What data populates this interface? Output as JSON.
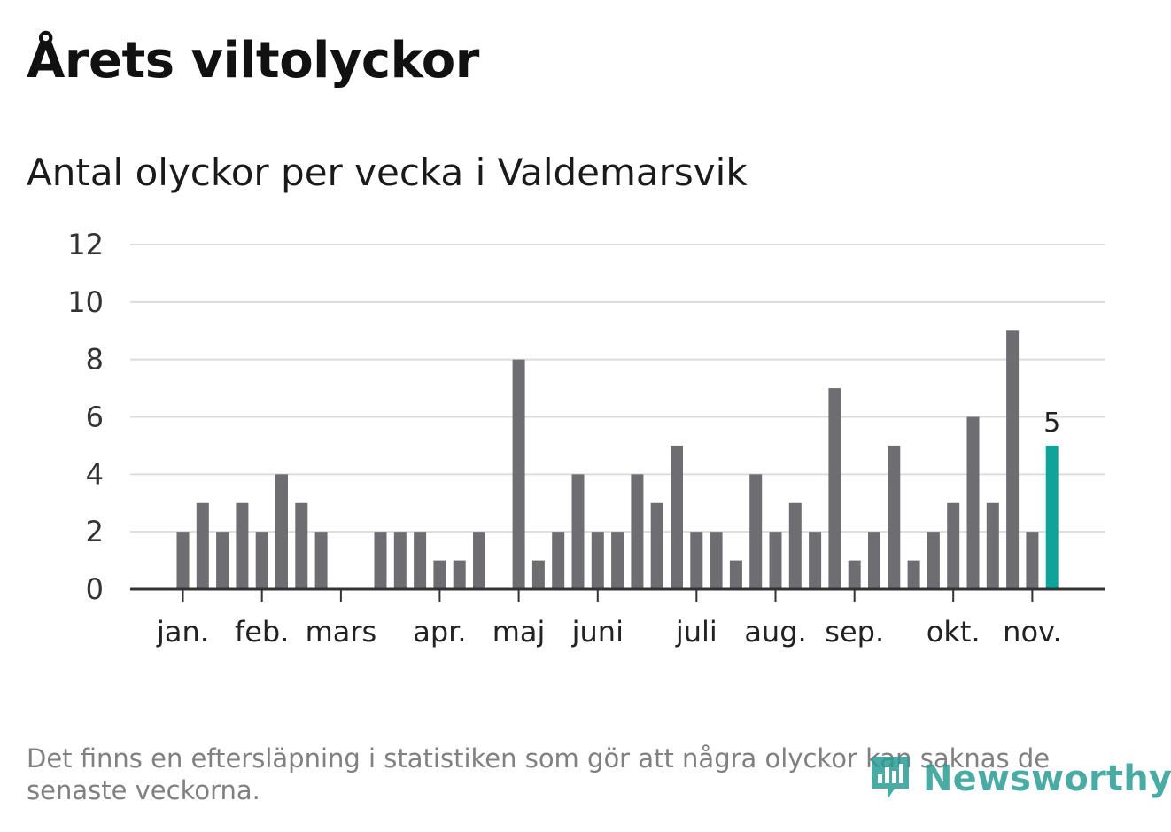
{
  "title": "Årets viltolyckor",
  "subtitle": "Antal olyckor per vecka i Valdemarsvik",
  "footnote": "Det finns en eftersläpning i statistiken som gör att några olyckor kan saknas de senaste veckorna.",
  "brand": {
    "name": "Newsworthy",
    "color": "#2a9d93"
  },
  "colors": {
    "bar": "#6e6d72",
    "highlight": "#0fa39a",
    "grid": "#dcdcdc",
    "axis": "#333333"
  },
  "chart_data": {
    "type": "bar",
    "title": "Antal olyckor per vecka i Valdemarsvik",
    "xlabel": "",
    "ylabel": "",
    "ylim": [
      0,
      12
    ],
    "yticks": [
      "0",
      "2",
      "4",
      "6",
      "8",
      "10",
      "12"
    ],
    "values": [
      2,
      3,
      2,
      3,
      2,
      4,
      3,
      2,
      0,
      0,
      2,
      2,
      2,
      1,
      1,
      2,
      0,
      8,
      1,
      2,
      4,
      2,
      2,
      4,
      3,
      5,
      2,
      2,
      1,
      4,
      2,
      3,
      2,
      7,
      1,
      2,
      5,
      1,
      2,
      3,
      6,
      3,
      9,
      2,
      5
    ],
    "highlight_index": 44,
    "highlight_label": "5",
    "month_labels": [
      {
        "label": "jan.",
        "week": 0
      },
      {
        "label": "feb.",
        "week": 4
      },
      {
        "label": "mars",
        "week": 8
      },
      {
        "label": "apr.",
        "week": 13
      },
      {
        "label": "maj",
        "week": 17
      },
      {
        "label": "juni",
        "week": 21
      },
      {
        "label": "juli",
        "week": 26
      },
      {
        "label": "aug.",
        "week": 30
      },
      {
        "label": "sep.",
        "week": 34
      },
      {
        "label": "okt.",
        "week": 39
      },
      {
        "label": "nov.",
        "week": 43
      }
    ]
  }
}
